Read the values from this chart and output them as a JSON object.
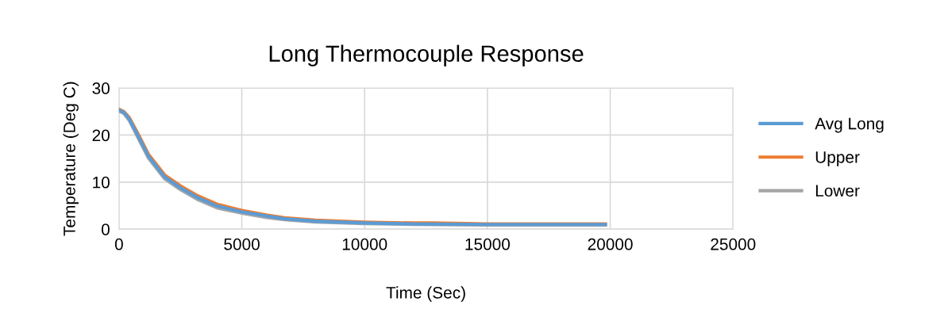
{
  "chart_data": {
    "type": "line",
    "title": "Long Thermocouple Response",
    "xlabel": "Time (Sec)",
    "ylabel": "Temperature (Deg C)",
    "xlim": [
      0,
      25000
    ],
    "xticks": [
      0,
      5000,
      10000,
      15000,
      20000,
      25000
    ],
    "ylim": [
      0,
      30
    ],
    "yticks": [
      0,
      10,
      20,
      30
    ],
    "grid": true,
    "legend": "right",
    "marker": "none",
    "line_style": "solid",
    "series": [
      {
        "name": "Avg Long",
        "color": "#5b9bd5",
        "x": [
          0,
          200,
          420,
          750,
          1200,
          1860,
          2500,
          3200,
          4000,
          5000,
          6000,
          6740,
          8000,
          10000,
          12000,
          15000,
          17500,
          19800
        ],
        "values": [
          25.3,
          24.8,
          23.4,
          20.1,
          15.5,
          11.1,
          8.8,
          6.7,
          4.9,
          3.7,
          2.8,
          2.2,
          1.7,
          1.3,
          1.1,
          1.0,
          1.0,
          1.0
        ]
      },
      {
        "name": "Upper",
        "color": "#ed7d31",
        "x": [
          0,
          200,
          420,
          750,
          1200,
          1860,
          2500,
          3200,
          4000,
          5000,
          6000,
          6740,
          8000,
          10000,
          12000,
          12800,
          15000,
          17500,
          19800
        ],
        "values": [
          25.5,
          25.0,
          23.7,
          20.5,
          15.9,
          11.5,
          9.2,
          7.1,
          5.3,
          4.0,
          3.0,
          2.4,
          1.9,
          1.5,
          1.3,
          1.3,
          1.1,
          1.1,
          1.1
        ]
      },
      {
        "name": "Lower",
        "color": "#a5a5a5",
        "x": [
          0,
          200,
          420,
          750,
          1200,
          1860,
          2500,
          3200,
          4000,
          5000,
          6000,
          6740,
          8000,
          10000,
          12000,
          15000,
          17500,
          19800
        ],
        "values": [
          25.1,
          24.6,
          23.1,
          19.7,
          15.1,
          10.7,
          8.4,
          6.3,
          4.5,
          3.4,
          2.5,
          2.0,
          1.5,
          1.2,
          1.0,
          0.9,
          0.9,
          0.9
        ]
      }
    ]
  }
}
